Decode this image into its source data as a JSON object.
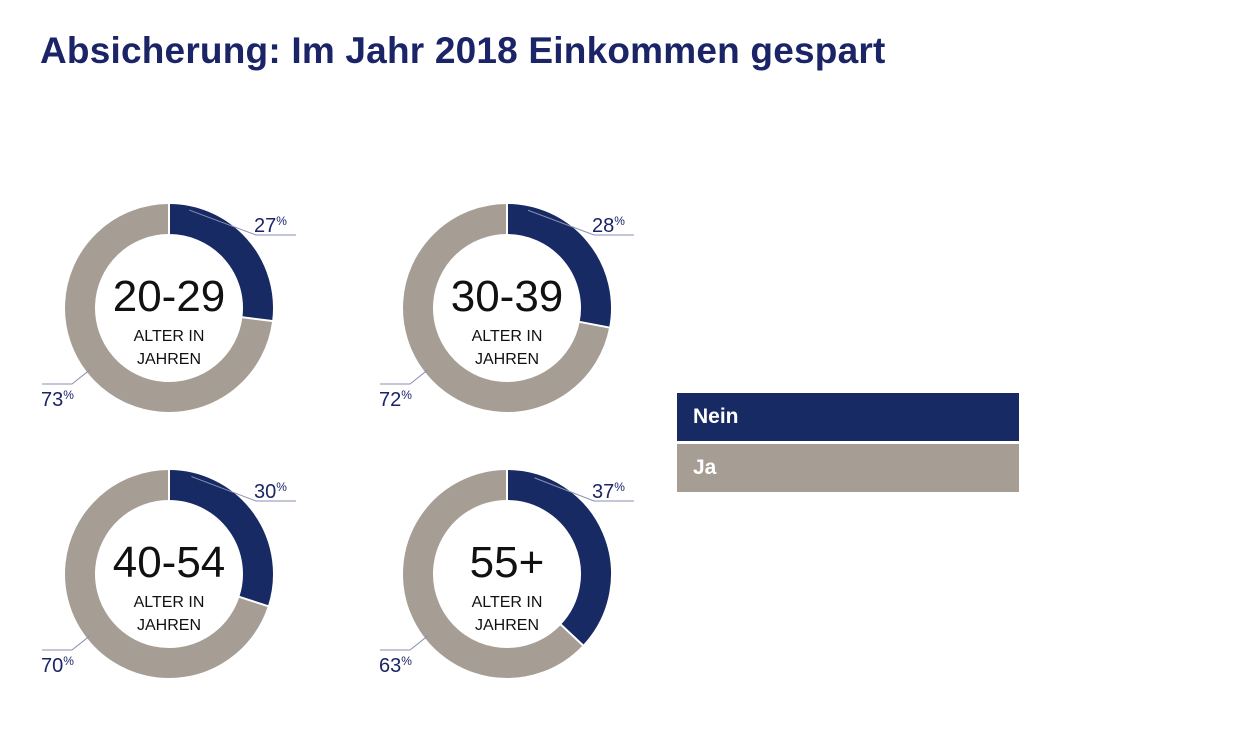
{
  "chart_data": {
    "type": "pie",
    "variant": "donut",
    "title": "Absicherung: Im Jahr 2018 Einkommen gespart",
    "colors": {
      "Nein": "#172a64",
      "Ja": "#a69e95"
    },
    "charts": [
      {
        "group": "20-29",
        "caption_line1": "ALTER IN",
        "caption_line2": "JAHREN",
        "nein": 27,
        "ja": 73,
        "nein_label": "27",
        "ja_label": "73"
      },
      {
        "group": "30-39",
        "caption_line1": "ALTER IN",
        "caption_line2": "JAHREN",
        "nein": 28,
        "ja": 72,
        "nein_label": "28",
        "ja_label": "72"
      },
      {
        "group": "40-54",
        "caption_line1": "ALTER IN",
        "caption_line2": "JAHREN",
        "nein": 30,
        "ja": 70,
        "nein_label": "30",
        "ja_label": "70"
      },
      {
        "group": "55+",
        "caption_line1": "ALTER IN",
        "caption_line2": "JAHREN",
        "nein": 37,
        "ja": 63,
        "nein_label": "37",
        "ja_label": "63"
      }
    ],
    "percent_symbol": "%",
    "legend": [
      {
        "label": "Nein"
      },
      {
        "label": "Ja"
      }
    ]
  }
}
